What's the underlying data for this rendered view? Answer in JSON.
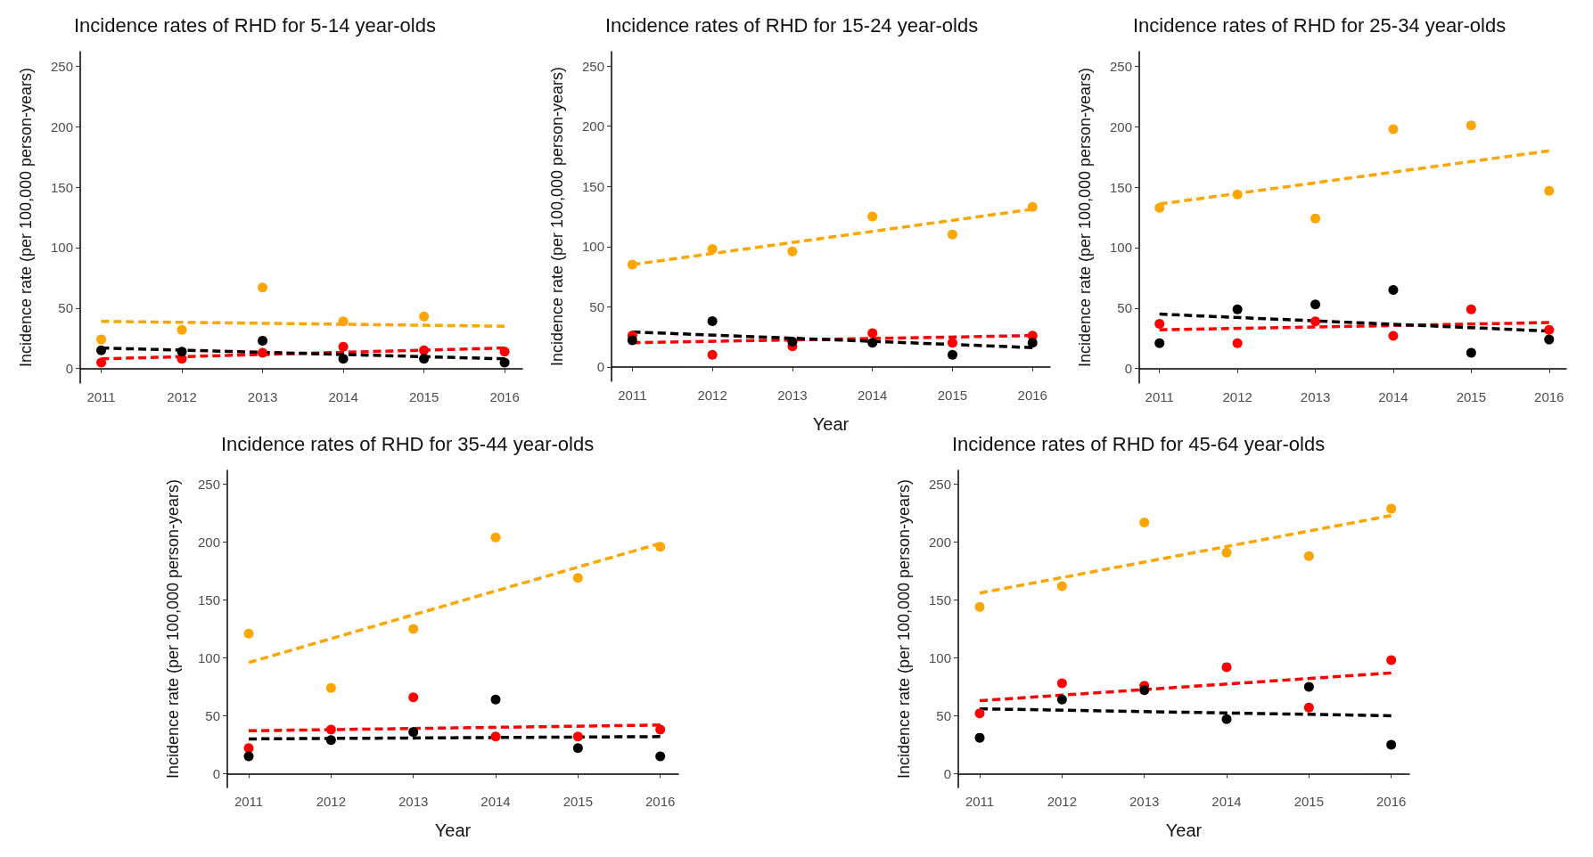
{
  "chart_data": [
    {
      "type": "scatter",
      "title": "Incidence rates of RHD for 5-14 year-olds",
      "ylabel": "Incidence rate (per 100,000 person-years)",
      "xlim": [
        2010.74,
        2016.22
      ],
      "ylim": [
        -12,
        262
      ],
      "xticks": [
        2011,
        2012,
        2013,
        2014,
        2015,
        2016
      ],
      "yticks": [
        0,
        50,
        100,
        150,
        200,
        250
      ],
      "marker": "circle",
      "series": [
        {
          "color": "#ffa500",
          "x": [
            2011,
            2012,
            2013,
            2014,
            2015
          ],
          "values": [
            24,
            32,
            67,
            39,
            43
          ]
        },
        {
          "color": "#ff0000",
          "x": [
            2011,
            2012,
            2013,
            2014,
            2015,
            2016
          ],
          "values": [
            5,
            8,
            13,
            18,
            15,
            14
          ]
        },
        {
          "color": "#000000",
          "x": [
            2011,
            2012,
            2013,
            2014,
            2015,
            2016
          ],
          "values": [
            15,
            14,
            23,
            8,
            8,
            5
          ]
        },
        {
          "type": "line",
          "line_style": "dashed",
          "marker": "none",
          "color": "#ffa500",
          "x": [
            2011,
            2016
          ],
          "values": [
            39,
            35
          ]
        },
        {
          "type": "line",
          "line_style": "dashed",
          "marker": "none",
          "color": "#ff0000",
          "x": [
            2011,
            2016
          ],
          "values": [
            8,
            17
          ]
        },
        {
          "type": "line",
          "line_style": "dashed",
          "marker": "none",
          "color": "#000000",
          "x": [
            2011,
            2016
          ],
          "values": [
            17,
            8
          ]
        }
      ]
    },
    {
      "type": "scatter",
      "title": "Incidence rates of RHD for 15-24 year-olds",
      "xlabel": "Year",
      "ylabel": "Incidence rate (per 100,000 person-years)",
      "xlim": [
        2010.74,
        2016.22
      ],
      "ylim": [
        -12,
        262
      ],
      "xticks": [
        2011,
        2012,
        2013,
        2014,
        2015,
        2016
      ],
      "yticks": [
        0,
        50,
        100,
        150,
        200,
        250
      ],
      "marker": "circle",
      "series": [
        {
          "color": "#ffa500",
          "x": [
            2011,
            2012,
            2013,
            2014,
            2015,
            2016
          ],
          "values": [
            85,
            98,
            96,
            125,
            110,
            133
          ]
        },
        {
          "color": "#ff0000",
          "x": [
            2011,
            2012,
            2013,
            2014,
            2015,
            2016
          ],
          "values": [
            26,
            10,
            17,
            28,
            20,
            26
          ]
        },
        {
          "color": "#000000",
          "x": [
            2011,
            2012,
            2013,
            2014,
            2015,
            2016
          ],
          "values": [
            22,
            38,
            21,
            20,
            10,
            20
          ]
        },
        {
          "type": "line",
          "line_style": "dashed",
          "marker": "none",
          "color": "#ffa500",
          "x": [
            2011,
            2016
          ],
          "values": [
            85,
            131
          ]
        },
        {
          "type": "line",
          "line_style": "dashed",
          "marker": "none",
          "color": "#ff0000",
          "x": [
            2011,
            2016
          ],
          "values": [
            20,
            26
          ]
        },
        {
          "type": "line",
          "line_style": "dashed",
          "marker": "none",
          "color": "#000000",
          "x": [
            2011,
            2016
          ],
          "values": [
            29,
            16
          ]
        }
      ]
    },
    {
      "type": "scatter",
      "title": "Incidence rates of RHD for 25-34 year-olds",
      "ylabel": "Incidence rate (per 100,000 person-years)",
      "xlim": [
        2010.74,
        2016.22
      ],
      "ylim": [
        -12,
        262
      ],
      "xticks": [
        2011,
        2012,
        2013,
        2014,
        2015,
        2016
      ],
      "yticks": [
        0,
        50,
        100,
        150,
        200,
        250
      ],
      "marker": "circle",
      "series": [
        {
          "color": "#ffa500",
          "x": [
            2011,
            2012,
            2013,
            2014,
            2015,
            2016
          ],
          "values": [
            133,
            144,
            124,
            198,
            201,
            147
          ]
        },
        {
          "color": "#ff0000",
          "x": [
            2011,
            2012,
            2013,
            2014,
            2015,
            2016
          ],
          "values": [
            37,
            21,
            39,
            27,
            49,
            32
          ]
        },
        {
          "color": "#000000",
          "x": [
            2011,
            2012,
            2013,
            2014,
            2015,
            2016
          ],
          "values": [
            21,
            49,
            53,
            65,
            13,
            24
          ]
        },
        {
          "type": "line",
          "line_style": "dashed",
          "marker": "none",
          "color": "#ffa500",
          "x": [
            2011,
            2016
          ],
          "values": [
            136,
            180
          ]
        },
        {
          "type": "line",
          "line_style": "dashed",
          "marker": "none",
          "color": "#ff0000",
          "x": [
            2011,
            2016
          ],
          "values": [
            32,
            38
          ]
        },
        {
          "type": "line",
          "line_style": "dashed",
          "marker": "none",
          "color": "#000000",
          "x": [
            2011,
            2016
          ],
          "values": [
            45,
            31
          ]
        }
      ]
    },
    {
      "type": "scatter",
      "title": "Incidence rates of RHD for 35-44 year-olds",
      "xlabel": "Year",
      "ylabel": "Incidence rate (per 100,000 person-years)",
      "xlim": [
        2010.74,
        2016.22
      ],
      "ylim": [
        -12,
        262
      ],
      "xticks": [
        2011,
        2012,
        2013,
        2014,
        2015,
        2016
      ],
      "yticks": [
        0,
        50,
        100,
        150,
        200,
        250
      ],
      "marker": "circle",
      "series": [
        {
          "color": "#ffa500",
          "x": [
            2011,
            2012,
            2013,
            2014,
            2015,
            2016
          ],
          "values": [
            121,
            74,
            125,
            204,
            169,
            196
          ]
        },
        {
          "color": "#ff0000",
          "x": [
            2011,
            2012,
            2013,
            2014,
            2015,
            2016
          ],
          "values": [
            22,
            38,
            66,
            32,
            32,
            38
          ]
        },
        {
          "color": "#000000",
          "x": [
            2011,
            2012,
            2013,
            2014,
            2015,
            2016
          ],
          "values": [
            15,
            29,
            36,
            64,
            22,
            15
          ]
        },
        {
          "type": "line",
          "line_style": "dashed",
          "marker": "none",
          "color": "#ffa500",
          "x": [
            2011,
            2016
          ],
          "values": [
            96,
            199
          ]
        },
        {
          "type": "line",
          "line_style": "dashed",
          "marker": "none",
          "color": "#ff0000",
          "x": [
            2011,
            2016
          ],
          "values": [
            37,
            42
          ]
        },
        {
          "type": "line",
          "line_style": "dashed",
          "marker": "none",
          "color": "#000000",
          "x": [
            2011,
            2016
          ],
          "values": [
            30,
            32
          ]
        }
      ]
    },
    {
      "type": "scatter",
      "title": "Incidence rates of RHD for 45-64 year-olds",
      "xlabel": "Year",
      "ylabel": "Incidence rate (per 100,000 person-years)",
      "xlim": [
        2010.74,
        2016.22
      ],
      "ylim": [
        -12,
        262
      ],
      "xticks": [
        2011,
        2012,
        2013,
        2014,
        2015,
        2016
      ],
      "yticks": [
        0,
        50,
        100,
        150,
        200,
        250
      ],
      "marker": "circle",
      "series": [
        {
          "color": "#ffa500",
          "x": [
            2011,
            2012,
            2013,
            2014,
            2015,
            2016
          ],
          "values": [
            144,
            162,
            217,
            191,
            188,
            229
          ]
        },
        {
          "color": "#ff0000",
          "x": [
            2011,
            2012,
            2013,
            2014,
            2015,
            2016
          ],
          "values": [
            52,
            78,
            76,
            92,
            57,
            98
          ]
        },
        {
          "color": "#000000",
          "x": [
            2011,
            2012,
            2013,
            2014,
            2015,
            2016
          ],
          "values": [
            31,
            64,
            72,
            47,
            75,
            25
          ]
        },
        {
          "type": "line",
          "line_style": "dashed",
          "marker": "none",
          "color": "#ffa500",
          "x": [
            2011,
            2016
          ],
          "values": [
            156,
            223
          ]
        },
        {
          "type": "line",
          "line_style": "dashed",
          "marker": "none",
          "color": "#ff0000",
          "x": [
            2011,
            2016
          ],
          "values": [
            63,
            87
          ]
        },
        {
          "type": "line",
          "line_style": "dashed",
          "marker": "none",
          "color": "#000000",
          "x": [
            2011,
            2016
          ],
          "values": [
            56,
            50
          ]
        }
      ]
    }
  ]
}
